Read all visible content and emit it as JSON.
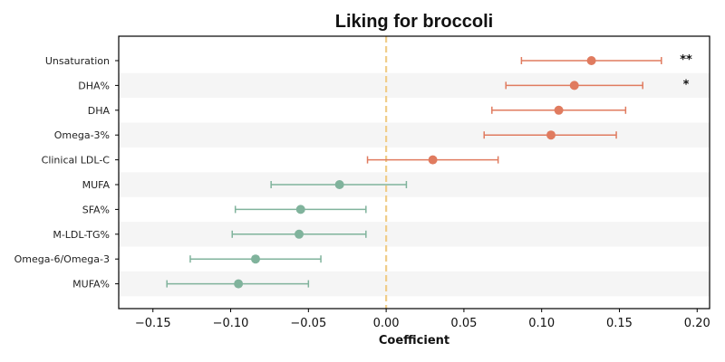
{
  "chart_data": {
    "type": "forest",
    "title": "Liking for broccoli",
    "xlabel": "Coefficient",
    "xlim": [
      -0.172,
      0.208
    ],
    "xticks": [
      -0.15,
      -0.1,
      -0.05,
      0.0,
      0.05,
      0.1,
      0.15,
      0.2
    ],
    "xtick_labels": [
      "−0.15",
      "−0.10",
      "−0.05",
      "0.00",
      "0.05",
      "0.10",
      "0.15",
      "0.20"
    ],
    "reference_line": 0,
    "colors": {
      "positive": "#e07b5f",
      "negative": "#80b39c",
      "reference_line": "#f0cd8a",
      "band": "#f5f5f5",
      "axis": "#000000"
    },
    "rows": [
      {
        "label": "Unsaturation",
        "estimate": 0.132,
        "ci_low": 0.087,
        "ci_high": 0.177,
        "significance": "**"
      },
      {
        "label": "DHA%",
        "estimate": 0.121,
        "ci_low": 0.077,
        "ci_high": 0.165,
        "significance": "*"
      },
      {
        "label": "DHA",
        "estimate": 0.111,
        "ci_low": 0.068,
        "ci_high": 0.154,
        "significance": ""
      },
      {
        "label": "Omega-3%",
        "estimate": 0.106,
        "ci_low": 0.063,
        "ci_high": 0.148,
        "significance": ""
      },
      {
        "label": "Clinical LDL-C",
        "estimate": 0.03,
        "ci_low": -0.012,
        "ci_high": 0.072,
        "significance": ""
      },
      {
        "label": "MUFA",
        "estimate": -0.03,
        "ci_low": -0.074,
        "ci_high": 0.013,
        "significance": ""
      },
      {
        "label": "SFA%",
        "estimate": -0.055,
        "ci_low": -0.097,
        "ci_high": -0.013,
        "significance": ""
      },
      {
        "label": "M-LDL-TG%",
        "estimate": -0.056,
        "ci_low": -0.099,
        "ci_high": -0.013,
        "significance": ""
      },
      {
        "label": "Omega-6/Omega-3",
        "estimate": -0.084,
        "ci_low": -0.126,
        "ci_high": -0.042,
        "significance": ""
      },
      {
        "label": "MUFA%",
        "estimate": -0.095,
        "ci_low": -0.141,
        "ci_high": -0.05,
        "significance": ""
      }
    ]
  }
}
